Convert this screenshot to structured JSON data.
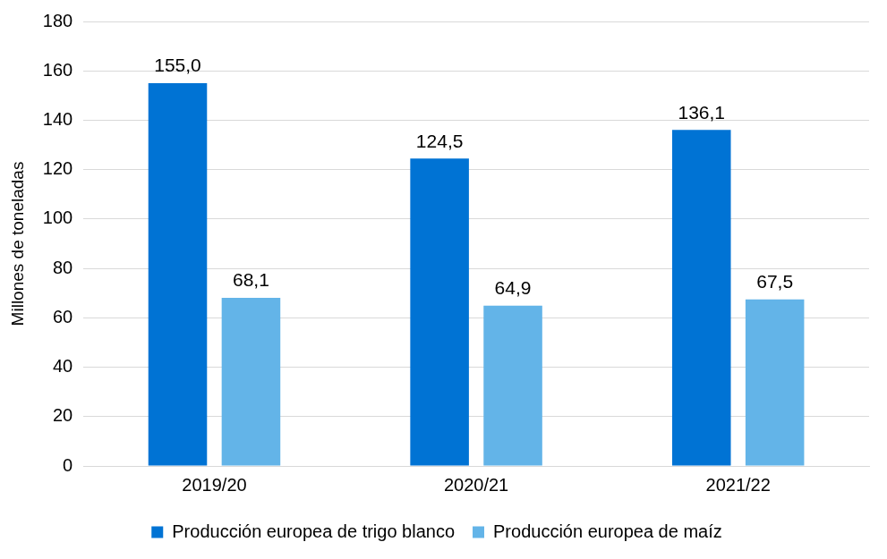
{
  "chart_data": {
    "type": "bar",
    "y_label": "Millones de toneladas",
    "categories": [
      "2019/20",
      "2020/21",
      "2021/22"
    ],
    "series": [
      {
        "name": "Producción europea de trigo blanco",
        "color": "#0073d4",
        "values": [
          155.0,
          124.5,
          136.1
        ],
        "value_labels": [
          "155,0",
          "124,5",
          "136,1"
        ]
      },
      {
        "name": "Producción europea de maíz",
        "color": "#63b4e8",
        "values": [
          68.1,
          64.9,
          67.5
        ],
        "value_labels": [
          "68,1",
          "64,9",
          "67,5"
        ]
      }
    ],
    "ylim": [
      0,
      180
    ],
    "yticks": [
      0,
      20,
      40,
      60,
      80,
      100,
      120,
      140,
      160,
      180
    ],
    "grid": true,
    "legend": "bottom",
    "data_labels": true
  }
}
